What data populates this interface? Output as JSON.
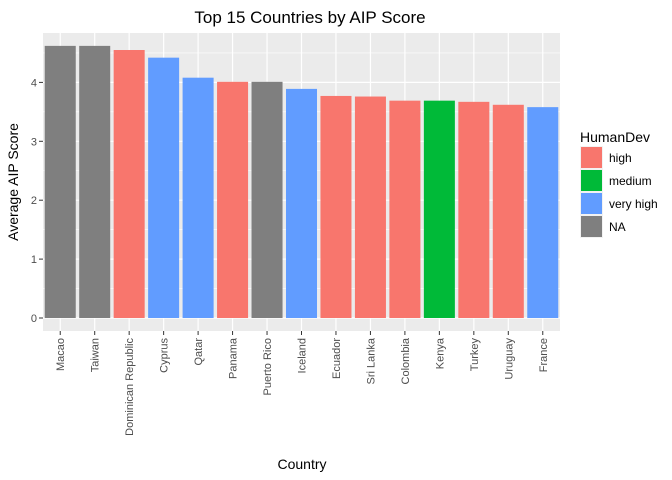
{
  "chart_data": {
    "type": "bar",
    "title": "Top 15 Countries by AIP Score",
    "xlabel": "Country",
    "ylabel": "Average AIP Score",
    "ylim": [
      0,
      4.8
    ],
    "yticks": [
      0,
      1,
      2,
      3,
      4
    ],
    "grid": true,
    "legend_position": "right",
    "categories": [
      "Macao",
      "Taiwan",
      "Dominican Republic",
      "Cyprus",
      "Qatar",
      "Panama",
      "Puerto Rico",
      "Iceland",
      "Ecuador",
      "Sri Lanka",
      "Colombia",
      "Kenya",
      "Turkey",
      "Uruguay",
      "France"
    ],
    "values": [
      4.62,
      4.62,
      4.55,
      4.42,
      4.08,
      4.01,
      4.01,
      3.89,
      3.77,
      3.76,
      3.69,
      3.69,
      3.67,
      3.62,
      3.58
    ],
    "groups": [
      "NA",
      "NA",
      "high",
      "very high",
      "very high",
      "high",
      "NA",
      "very high",
      "high",
      "high",
      "high",
      "medium",
      "high",
      "high",
      "very high"
    ],
    "legend": {
      "title": "HumanDev",
      "entries": [
        {
          "label": "high",
          "color": "#F8766D"
        },
        {
          "label": "medium",
          "color": "#00BA38"
        },
        {
          "label": "very high",
          "color": "#619CFF"
        },
        {
          "label": "NA",
          "color": "#7F7F7F"
        }
      ]
    },
    "panel_background": "#EBEBEB",
    "grid_color": "#FFFFFF"
  }
}
